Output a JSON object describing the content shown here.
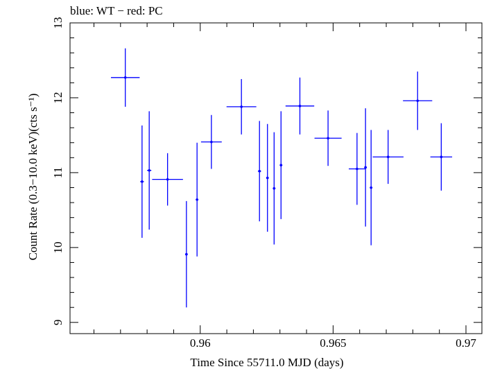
{
  "chart_data": {
    "type": "scatter",
    "title": "blue: WT − red: PC",
    "xlabel": "Time Since 55711.0 MJD (days)",
    "ylabel": "Count Rate (0.3−10.0 keV)(cts s⁻¹)",
    "xlim": [
      0.9551,
      0.9706
    ],
    "ylim": [
      8.85,
      13.0
    ],
    "x_ticks": [
      0.96,
      0.965,
      0.97
    ],
    "x_tick_labels": [
      "0.96",
      "0.965",
      "0.97"
    ],
    "y_ticks": [
      9,
      10,
      11,
      12,
      13
    ],
    "y_tick_labels": [
      "9",
      "10",
      "11",
      "12",
      "13"
    ],
    "grid": false,
    "color": "#0000ff",
    "series": [
      {
        "points": [
          {
            "x": 0.95718,
            "xerr": 0.00054,
            "y": 12.27,
            "yerr": 0.39
          },
          {
            "x": 0.95781,
            "xerr": 7e-05,
            "y": 10.88,
            "yerr": 0.75
          },
          {
            "x": 0.95808,
            "xerr": 8e-05,
            "y": 11.03,
            "yerr": 0.79
          },
          {
            "x": 0.95877,
            "xerr": 0.00058,
            "y": 10.91,
            "yerr": 0.35
          },
          {
            "x": 0.95948,
            "xerr": 5e-05,
            "y": 9.91,
            "yerr": 0.71
          },
          {
            "x": 0.95988,
            "xerr": 5e-05,
            "y": 10.64,
            "yerr": 0.76
          },
          {
            "x": 0.96042,
            "xerr": 0.00039,
            "y": 11.41,
            "yerr": 0.36
          },
          {
            "x": 0.96155,
            "xerr": 0.00056,
            "y": 11.88,
            "yerr": 0.37
          },
          {
            "x": 0.96223,
            "xerr": 6e-05,
            "y": 11.02,
            "yerr": 0.67
          },
          {
            "x": 0.96253,
            "xerr": 5e-05,
            "y": 10.93,
            "yerr": 0.72
          },
          {
            "x": 0.96278,
            "xerr": 5e-05,
            "y": 10.79,
            "yerr": 0.75
          },
          {
            "x": 0.96304,
            "xerr": 5e-05,
            "y": 11.1,
            "yerr": 0.72
          },
          {
            "x": 0.96375,
            "xerr": 0.00054,
            "y": 11.89,
            "yerr": 0.38
          },
          {
            "x": 0.96481,
            "xerr": 0.00051,
            "y": 11.46,
            "yerr": 0.37
          },
          {
            "x": 0.9659,
            "xerr": 0.00031,
            "y": 11.05,
            "yerr": 0.48
          },
          {
            "x": 0.96622,
            "xerr": 5e-05,
            "y": 11.07,
            "yerr": 0.79
          },
          {
            "x": 0.96643,
            "xerr": 5e-05,
            "y": 10.8,
            "yerr": 0.77
          },
          {
            "x": 0.96707,
            "xerr": 0.00058,
            "y": 11.21,
            "yerr": 0.36
          },
          {
            "x": 0.96818,
            "xerr": 0.00055,
            "y": 11.96,
            "yerr": 0.39
          },
          {
            "x": 0.96907,
            "xerr": 0.00041,
            "y": 11.21,
            "yerr": 0.45
          }
        ]
      }
    ]
  }
}
